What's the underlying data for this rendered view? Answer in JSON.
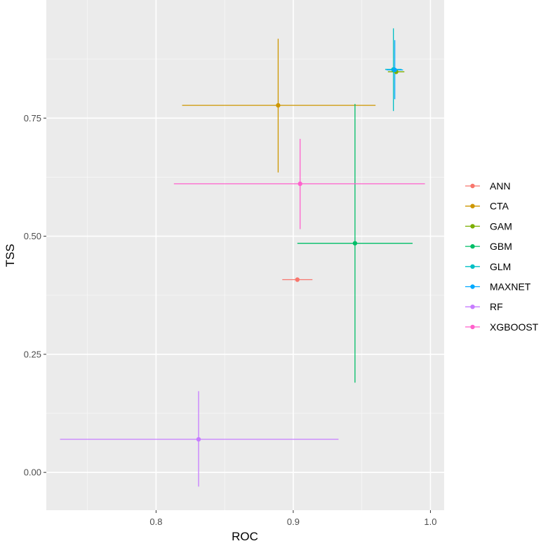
{
  "chart_data": {
    "type": "scatter",
    "title": "",
    "xlabel": "ROC",
    "ylabel": "TSS",
    "xlim": [
      0.72,
      1.01
    ],
    "ylim": [
      -0.08,
      1.0
    ],
    "xticks": [
      0.8,
      0.9,
      1.0
    ],
    "xtick_labels": [
      "0.8",
      "0.9",
      "1.0"
    ],
    "yticks": [
      0.0,
      0.25,
      0.5,
      0.75
    ],
    "ytick_labels": [
      "0.00",
      "0.25",
      "0.50",
      "0.75"
    ],
    "grid": true,
    "legend_position": "right",
    "series": [
      {
        "name": "ANN",
        "color": "#F8766D",
        "x": 0.903,
        "y": 0.408,
        "xmin": 0.892,
        "xmax": 0.914,
        "ymin": 0.408,
        "ymax": 0.408
      },
      {
        "name": "CTA",
        "color": "#CD9600",
        "x": 0.889,
        "y": 0.777,
        "xmin": 0.819,
        "xmax": 0.96,
        "ymin": 0.635,
        "ymax": 0.918
      },
      {
        "name": "GAM",
        "color": "#7CAE00",
        "x": 0.975,
        "y": 0.848,
        "xmin": 0.969,
        "xmax": 0.981,
        "ymin": 0.845,
        "ymax": 0.851
      },
      {
        "name": "GBM",
        "color": "#00BE67",
        "x": 0.945,
        "y": 0.485,
        "xmin": 0.903,
        "xmax": 0.987,
        "ymin": 0.19,
        "ymax": 0.78
      },
      {
        "name": "GLM",
        "color": "#00BFC4",
        "x": 0.973,
        "y": 0.853,
        "xmin": 0.967,
        "xmax": 0.979,
        "ymin": 0.765,
        "ymax": 0.94
      },
      {
        "name": "MAXNET",
        "color": "#00A9FF",
        "x": 0.974,
        "y": 0.852,
        "xmin": 0.968,
        "xmax": 0.98,
        "ymin": 0.79,
        "ymax": 0.915
      },
      {
        "name": "RF",
        "color": "#C77CFF",
        "x": 0.831,
        "y": 0.07,
        "xmin": 0.73,
        "xmax": 0.933,
        "ymin": -0.03,
        "ymax": 0.172
      },
      {
        "name": "XGBOOST",
        "color": "#FF61CC",
        "x": 0.905,
        "y": 0.611,
        "xmin": 0.813,
        "xmax": 0.996,
        "ymin": 0.515,
        "ymax": 0.706
      }
    ]
  }
}
